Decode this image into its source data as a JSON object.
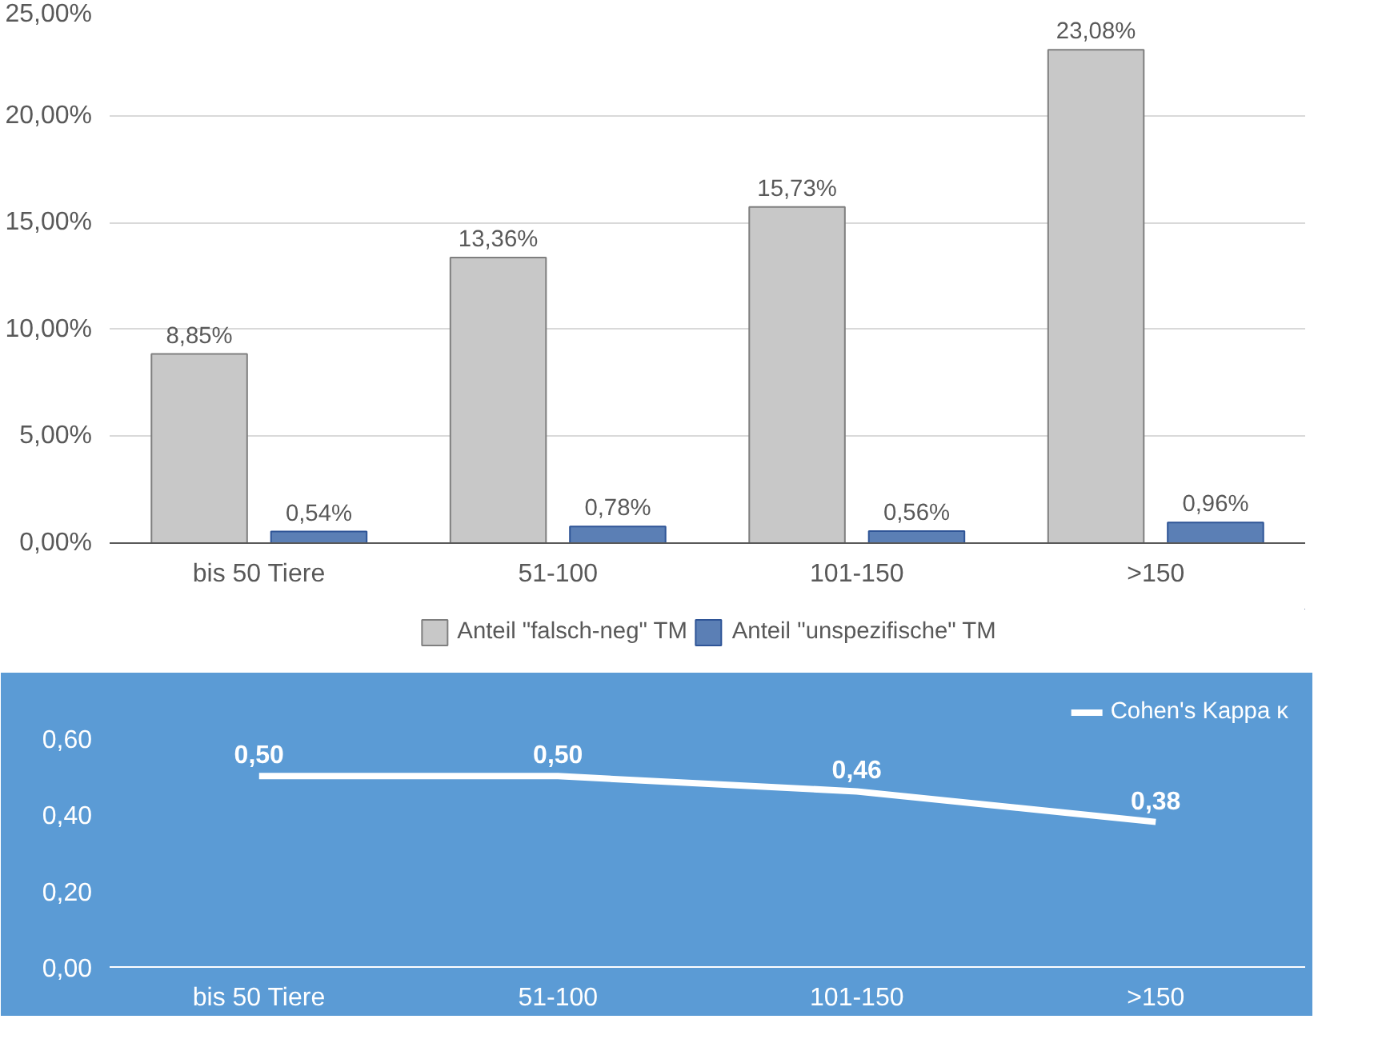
{
  "chart_data": [
    {
      "type": "bar",
      "categories": [
        "bis 50 Tiere",
        "51-100",
        "101-150",
        ">150"
      ],
      "series": [
        {
          "name": "Anteil \"falsch-neg\" TM",
          "color": "#c8c8c8",
          "values": [
            8.85,
            13.36,
            15.73,
            23.08
          ],
          "value_labels": [
            "8,85%",
            "13,36%",
            "15,73%",
            "23,08%"
          ]
        },
        {
          "name": "Anteil \"unspezifische\" TM",
          "color": "#5b7fb5",
          "values": [
            0.54,
            0.78,
            0.56,
            0.96
          ],
          "value_labels": [
            "0,54%",
            "0,78%",
            "0,56%",
            "0,96%"
          ]
        }
      ],
      "ylim": [
        0,
        25
      ],
      "yticks": [
        {
          "value": 0,
          "label": "0,00%"
        },
        {
          "value": 5,
          "label": "5,00%"
        },
        {
          "value": 10,
          "label": "10,00%"
        },
        {
          "value": 15,
          "label": "15,00%"
        },
        {
          "value": 20,
          "label": "20,00%"
        },
        {
          "value": 25,
          "label": "25,00%"
        }
      ],
      "grid": "y",
      "legend": "bottom"
    },
    {
      "type": "line",
      "categories": [
        "bis 50 Tiere",
        "51-100",
        "101-150",
        ">150"
      ],
      "series": [
        {
          "name": "Cohen's Kappa κ",
          "color": "#ffffff",
          "values": [
            0.5,
            0.5,
            0.46,
            0.38
          ],
          "value_labels": [
            "0,50",
            "0,50",
            "0,46",
            "0,38"
          ]
        }
      ],
      "ylim": [
        0,
        0.75
      ],
      "yticks": [
        {
          "value": 0,
          "label": "0,00"
        },
        {
          "value": 0.2,
          "label": "0,20"
        },
        {
          "value": 0.4,
          "label": "0,40"
        },
        {
          "value": 0.6,
          "label": "0,60"
        }
      ],
      "legend": "top right"
    }
  ]
}
